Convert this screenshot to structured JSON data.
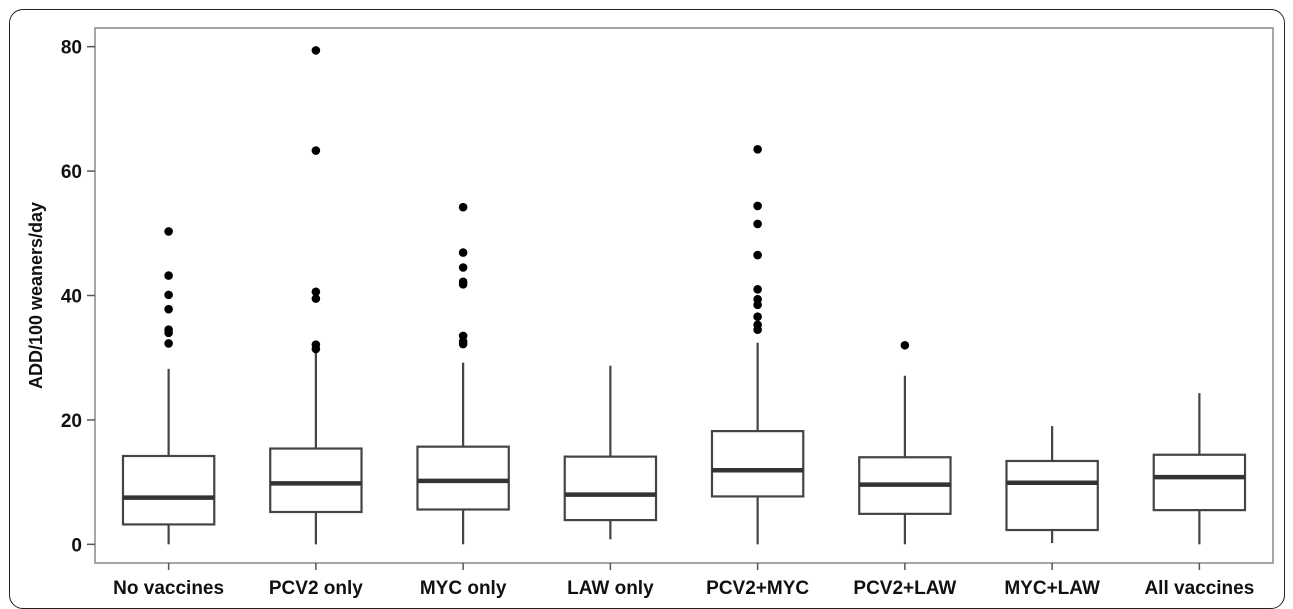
{
  "chart_data": {
    "type": "box",
    "title": "",
    "xlabel": "",
    "ylabel": "ADD/100 weaners/day",
    "ylim": [
      -3,
      83
    ],
    "yticks": [
      0,
      20,
      40,
      60,
      80
    ],
    "grid": false,
    "categories": [
      "No vaccines",
      "PCV2 only",
      "MYC only",
      "LAW only",
      "PCV2+MYC",
      "PCV2+LAW",
      "MYC+LAW",
      "All vaccines"
    ],
    "boxes": [
      {
        "min": 0,
        "q1": 3.2,
        "median": 7.5,
        "q3": 14.2,
        "max": 28.2,
        "outliers": [
          50.3,
          43.2,
          40.1,
          37.8,
          34.5,
          34.0,
          32.3
        ]
      },
      {
        "min": 0,
        "q1": 5.2,
        "median": 9.8,
        "q3": 15.4,
        "max": 31.0,
        "outliers": [
          79.4,
          63.3,
          40.6,
          39.5,
          32.1,
          31.4
        ]
      },
      {
        "min": 0,
        "q1": 5.6,
        "median": 10.2,
        "q3": 15.7,
        "max": 29.2,
        "outliers": [
          54.2,
          46.9,
          44.5,
          42.2,
          41.8,
          33.5,
          32.6,
          32.2
        ]
      },
      {
        "min": 0.8,
        "q1": 3.9,
        "median": 8.0,
        "q3": 14.1,
        "max": 28.7,
        "outliers": []
      },
      {
        "min": 0,
        "q1": 7.7,
        "median": 11.9,
        "q3": 18.2,
        "max": 32.4,
        "outliers": [
          63.5,
          54.4,
          51.5,
          46.5,
          41.0,
          39.4,
          38.5,
          36.6,
          35.3,
          34.5
        ]
      },
      {
        "min": 0,
        "q1": 4.9,
        "median": 9.6,
        "q3": 14.0,
        "max": 27.1,
        "outliers": [
          32.0
        ]
      },
      {
        "min": 0.2,
        "q1": 2.3,
        "median": 9.9,
        "q3": 13.4,
        "max": 19.0,
        "outliers": []
      },
      {
        "min": 0,
        "q1": 5.5,
        "median": 10.8,
        "q3": 14.4,
        "max": 24.3,
        "outliers": []
      }
    ]
  }
}
